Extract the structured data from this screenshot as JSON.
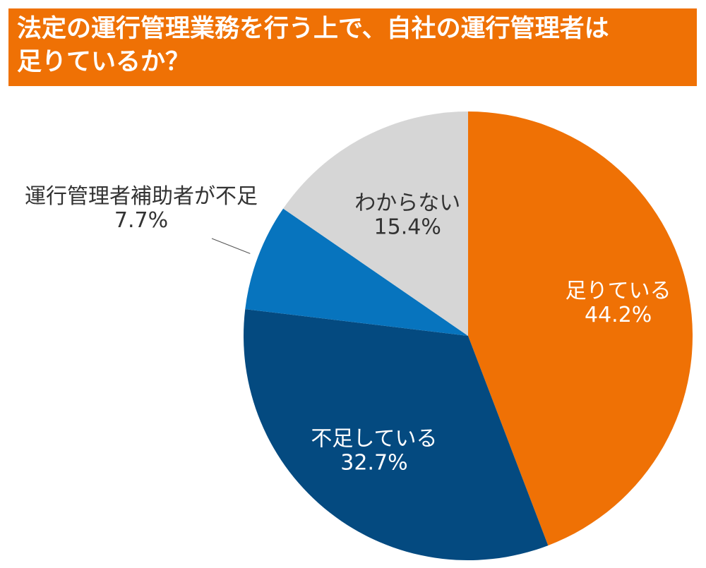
{
  "header": {
    "title_line1": "法定の運行管理業務を行う上で、自社の運行管理者は",
    "title_line2": "足りているか？"
  },
  "chart_data": {
    "type": "pie",
    "title": "法定の運行管理業務を行う上で、自社の運行管理者は足りているか？",
    "unit": "%",
    "start_angle_deg": 0,
    "direction": "clockwise",
    "slices": [
      {
        "label": "足りている",
        "value": 44.2,
        "value_label": "44.2%",
        "color": "#ef7105",
        "label_placement": "inside",
        "text_color": "#ffffff"
      },
      {
        "label": "不足している",
        "value": 32.7,
        "value_label": "32.7%",
        "color": "#044a80",
        "label_placement": "inside",
        "text_color": "#ffffff"
      },
      {
        "label": "運行管理者補助者が不足",
        "value": 7.7,
        "value_label": "7.7%",
        "color": "#0774be",
        "label_placement": "outside-left",
        "text_color": "#333333"
      },
      {
        "label": "わからない",
        "value": 15.4,
        "value_label": "15.4%",
        "color": "#d6d6d6",
        "label_placement": "inside",
        "text_color": "#333333"
      }
    ]
  }
}
